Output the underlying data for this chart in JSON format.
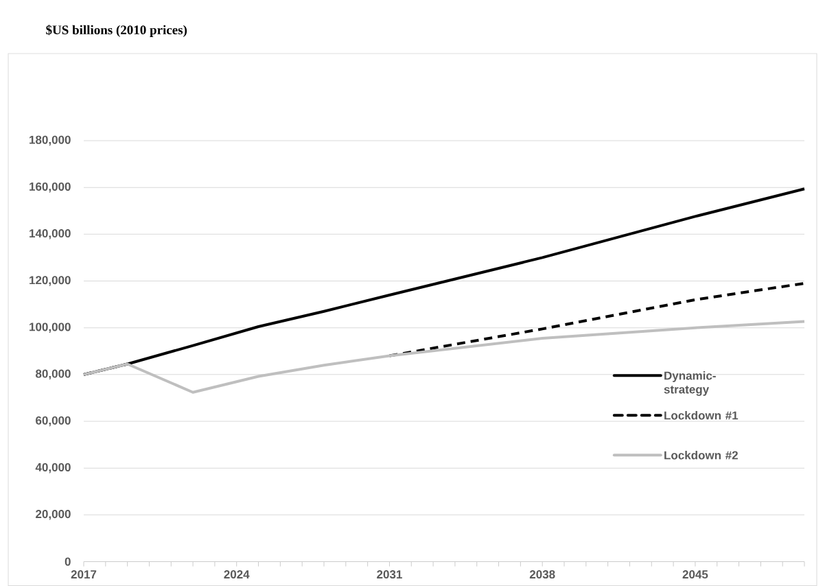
{
  "chart_data": {
    "type": "line",
    "title": "$US billions (2010 prices)",
    "x": [
      2017,
      2019,
      2022,
      2025,
      2028,
      2031,
      2038,
      2045,
      2050
    ],
    "series": [
      {
        "name": "Dynamic-strategy",
        "color": "#000000",
        "line_style": "solid",
        "values": [
          80000,
          84500,
          92400,
          100500,
          107000,
          114000,
          130000,
          147600,
          159400
        ]
      },
      {
        "name": "Lockdown #1",
        "color": "#000000",
        "line_style": "dashed",
        "values": [
          80000,
          84500,
          null,
          null,
          null,
          88000,
          99500,
          112000,
          119000
        ]
      },
      {
        "name": "Lockdown #2",
        "color": "#bfbfbf",
        "line_style": "solid",
        "values": [
          80000,
          84500,
          72400,
          79200,
          84000,
          88000,
          95500,
          100000,
          102700
        ]
      }
    ],
    "xlim": [
      2017,
      2050
    ],
    "xticks": [
      2017,
      {
        "value": 2018,
        "label": null
      },
      {
        "value": 2019,
        "label": null
      },
      {
        "value": 2020,
        "label": null
      },
      {
        "value": 2021,
        "label": null
      },
      {
        "value": 2022,
        "label": null
      },
      {
        "value": 2023,
        "label": null
      },
      2024,
      {
        "value": 2025,
        "label": null
      },
      {
        "value": 2026,
        "label": null
      },
      {
        "value": 2027,
        "label": null
      },
      {
        "value": 2028,
        "label": null
      },
      {
        "value": 2029,
        "label": null
      },
      {
        "value": 2030,
        "label": null
      },
      2031,
      {
        "value": 2032,
        "label": null
      },
      {
        "value": 2033,
        "label": null
      },
      {
        "value": 2034,
        "label": null
      },
      {
        "value": 2035,
        "label": null
      },
      {
        "value": 2036,
        "label": null
      },
      {
        "value": 2037,
        "label": null
      },
      2038,
      {
        "value": 2039,
        "label": null
      },
      {
        "value": 2040,
        "label": null
      },
      {
        "value": 2041,
        "label": null
      },
      {
        "value": 2042,
        "label": null
      },
      {
        "value": 2043,
        "label": null
      },
      {
        "value": 2044,
        "label": null
      },
      2045,
      {
        "value": 2046,
        "label": null
      },
      {
        "value": 2047,
        "label": null
      },
      {
        "value": 2048,
        "label": null
      },
      {
        "value": 2049,
        "label": null
      },
      {
        "value": 2050,
        "label": null
      }
    ],
    "ylim": [
      0,
      180000
    ],
    "yticks": [
      0,
      {
        "value": 20000,
        "label": "20,000"
      },
      {
        "value": 40000,
        "label": "40,000"
      },
      {
        "value": 60000,
        "label": "60,000"
      },
      {
        "value": 80000,
        "label": "80,000"
      },
      {
        "value": 100000,
        "label": "100,000"
      },
      {
        "value": 120000,
        "label": "120,000"
      },
      {
        "value": 140000,
        "label": "140,000"
      },
      {
        "value": 160000,
        "label": "160,000"
      },
      {
        "value": 180000,
        "label": "180,000"
      }
    ],
    "grid": "y",
    "legend": "right"
  }
}
